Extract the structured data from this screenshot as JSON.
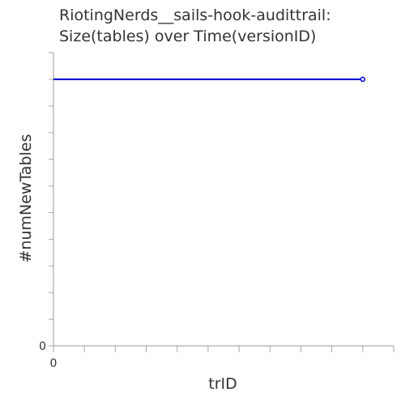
{
  "chart_data": {
    "type": "line",
    "title_line1": "RiotingNerds__sails-hook-audittrail:",
    "title_line2": "Size(tables) over Time(versionID)",
    "xlabel": "trID",
    "ylabel": "#numNewTables",
    "x_tick_label": "0",
    "y_tick_label": "0",
    "xlim": [
      0,
      11
    ],
    "ylim": [
      0,
      11
    ],
    "series": [
      {
        "x": [
          0,
          10
        ],
        "y": [
          10,
          10
        ],
        "color": "#0000cc"
      }
    ],
    "grid": false
  }
}
